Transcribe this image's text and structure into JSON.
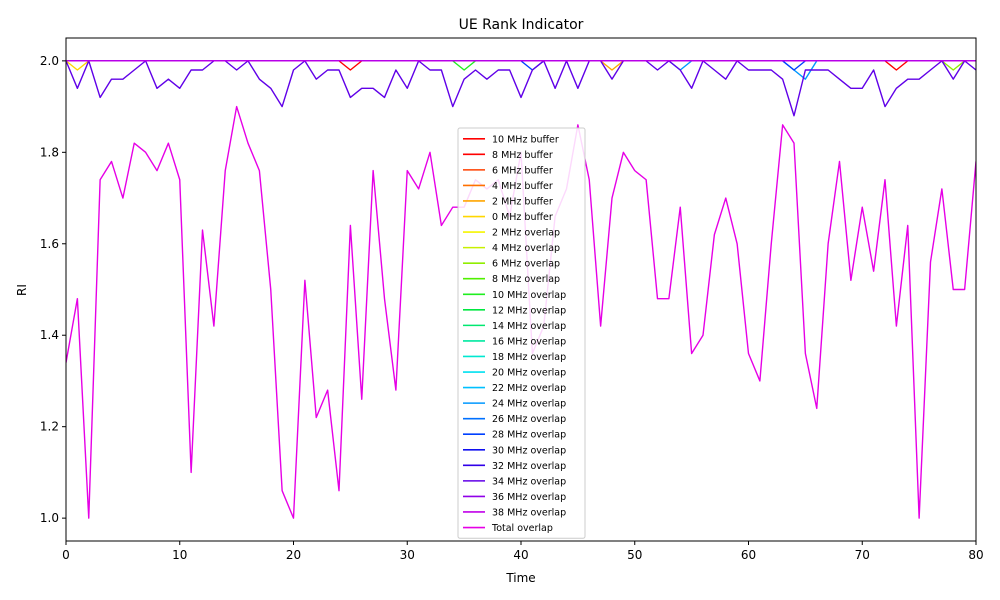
{
  "chart_data": {
    "type": "line",
    "title": "UE Rank Indicator",
    "xlabel": "Time",
    "ylabel": "RI",
    "xlim": [
      0,
      80
    ],
    "ylim": [
      0.95,
      2.05
    ],
    "xticks": [
      0,
      10,
      20,
      30,
      40,
      50,
      60,
      70,
      80
    ],
    "yticks": [
      1.0,
      1.2,
      1.4,
      1.6,
      1.8,
      2.0
    ],
    "grid": false,
    "legend_position": "center",
    "series": [
      {
        "name": "10 MHz buffer",
        "color": "#ff0000",
        "x": [
          0,
          80
        ],
        "y": [
          2.0,
          2.0
        ]
      },
      {
        "name": "8 MHz buffer",
        "color": "#ff0000",
        "x": [
          0,
          23,
          24,
          25,
          26,
          71,
          72,
          73,
          74,
          80
        ],
        "y": [
          2.0,
          2.0,
          2.0,
          1.98,
          2.0,
          2.0,
          2.0,
          1.98,
          2.0,
          2.0
        ]
      },
      {
        "name": "6 MHz buffer",
        "color": "#ff4000",
        "x": [
          0,
          80
        ],
        "y": [
          2.0,
          2.0
        ]
      },
      {
        "name": "4 MHz buffer",
        "color": "#ff7000",
        "x": [
          0,
          80
        ],
        "y": [
          2.0,
          2.0
        ]
      },
      {
        "name": "2 MHz buffer",
        "color": "#ffa500",
        "x": [
          0,
          47,
          48,
          49,
          80
        ],
        "y": [
          2.0,
          2.0,
          1.98,
          2.0,
          2.0
        ]
      },
      {
        "name": "0 MHz buffer",
        "color": "#ffd700",
        "x": [
          0,
          1,
          2,
          80
        ],
        "y": [
          2.0,
          1.98,
          2.0,
          2.0
        ]
      },
      {
        "name": "2 MHz overlap",
        "color": "#f5f500",
        "x": [
          0,
          80
        ],
        "y": [
          2.0,
          2.0
        ]
      },
      {
        "name": "4 MHz overlap",
        "color": "#c8f000",
        "x": [
          0,
          80
        ],
        "y": [
          2.0,
          2.0
        ]
      },
      {
        "name": "6 MHz overlap",
        "color": "#90ee00",
        "x": [
          0,
          77,
          78,
          79,
          80
        ],
        "y": [
          2.0,
          2.0,
          1.98,
          2.0,
          2.0
        ]
      },
      {
        "name": "8 MHz overlap",
        "color": "#50f000",
        "x": [
          0,
          80
        ],
        "y": [
          2.0,
          2.0
        ]
      },
      {
        "name": "10 MHz overlap",
        "color": "#20ee20",
        "x": [
          0,
          34,
          35,
          36,
          80
        ],
        "y": [
          2.0,
          2.0,
          1.98,
          2.0,
          2.0
        ]
      },
      {
        "name": "12 MHz overlap",
        "color": "#00e840",
        "x": [
          0,
          80
        ],
        "y": [
          2.0,
          2.0
        ]
      },
      {
        "name": "14 MHz overlap",
        "color": "#00e870",
        "x": [
          0,
          80
        ],
        "y": [
          2.0,
          2.0
        ]
      },
      {
        "name": "16 MHz overlap",
        "color": "#00e8a0",
        "x": [
          0,
          80
        ],
        "y": [
          2.0,
          2.0
        ]
      },
      {
        "name": "18 MHz overlap",
        "color": "#00e8d0",
        "x": [
          0,
          80
        ],
        "y": [
          2.0,
          2.0
        ]
      },
      {
        "name": "20 MHz overlap",
        "color": "#00e0f0",
        "x": [
          0,
          80
        ],
        "y": [
          2.0,
          2.0
        ]
      },
      {
        "name": "22 MHz overlap",
        "color": "#00c0ff",
        "x": [
          0,
          80
        ],
        "y": [
          2.0,
          2.0
        ]
      },
      {
        "name": "24 MHz overlap",
        "color": "#0098ff",
        "x": [
          0,
          53,
          54,
          55,
          63,
          64,
          65,
          66,
          80
        ],
        "y": [
          2.0,
          2.0,
          1.98,
          2.0,
          2.0,
          1.98,
          1.96,
          2.0,
          2.0
        ]
      },
      {
        "name": "26 MHz overlap",
        "color": "#0070ff",
        "x": [
          0,
          80
        ],
        "y": [
          2.0,
          2.0
        ]
      },
      {
        "name": "28 MHz overlap",
        "color": "#0040ff",
        "x": [
          0,
          39,
          40,
          41,
          42,
          63,
          64,
          65,
          80
        ],
        "y": [
          2.0,
          2.0,
          2.0,
          1.98,
          2.0,
          2.0,
          1.98,
          2.0,
          2.0
        ]
      },
      {
        "name": "30 MHz overlap",
        "color": "#1010f0",
        "x": [
          0,
          80
        ],
        "y": [
          2.0,
          2.0
        ]
      },
      {
        "name": "32 MHz overlap",
        "color": "#3000e8",
        "x": [
          0,
          80
        ],
        "y": [
          2.0,
          2.0
        ]
      },
      {
        "name": "34 MHz overlap",
        "color": "#6000e8",
        "x": [
          0,
          1,
          2,
          3,
          4,
          5,
          6,
          7,
          8,
          9,
          10,
          11,
          12,
          13,
          14,
          15,
          16,
          17,
          18,
          19,
          20,
          21,
          22,
          23,
          24,
          25,
          26,
          27,
          28,
          29,
          30,
          31,
          32,
          33,
          34,
          35,
          36,
          37,
          38,
          39,
          40,
          41,
          42,
          43,
          44,
          45,
          46,
          47,
          48,
          49,
          50,
          51,
          52,
          53,
          54,
          55,
          56,
          57,
          58,
          59,
          60,
          61,
          62,
          63,
          64,
          65,
          66,
          67,
          68,
          69,
          70,
          71,
          72,
          73,
          74,
          75,
          76,
          77,
          78,
          79,
          80
        ],
        "y": [
          2.0,
          1.94,
          2.0,
          1.92,
          1.96,
          1.96,
          1.98,
          2.0,
          1.94,
          1.96,
          1.94,
          1.98,
          1.98,
          2.0,
          2.0,
          1.98,
          2.0,
          1.96,
          1.94,
          1.9,
          1.98,
          2.0,
          1.96,
          1.98,
          1.98,
          1.92,
          1.94,
          1.94,
          1.92,
          1.98,
          1.94,
          2.0,
          1.98,
          1.98,
          1.9,
          1.96,
          1.98,
          1.96,
          1.98,
          1.98,
          1.92,
          1.98,
          2.0,
          1.94,
          2.0,
          1.94,
          2.0,
          2.0,
          1.96,
          2.0,
          2.0,
          2.0,
          1.98,
          2.0,
          1.98,
          1.94,
          2.0,
          1.98,
          1.96,
          2.0,
          1.98,
          1.98,
          1.98,
          1.96,
          1.88,
          1.98,
          1.98,
          1.98,
          1.96,
          1.94,
          1.94,
          1.98,
          1.9,
          1.94,
          1.96,
          1.96,
          1.98,
          2.0,
          1.96,
          2.0,
          1.98
        ]
      },
      {
        "name": "36 MHz overlap",
        "color": "#9000e8",
        "x": [
          0,
          80
        ],
        "y": [
          2.0,
          2.0
        ]
      },
      {
        "name": "38 MHz overlap",
        "color": "#c000e8",
        "x": [
          0,
          80
        ],
        "y": [
          2.0,
          2.0
        ]
      },
      {
        "name": "Total overlap",
        "color": "#e600e6",
        "x": [
          0,
          1,
          2,
          3,
          4,
          5,
          6,
          7,
          8,
          9,
          10,
          11,
          12,
          13,
          14,
          15,
          16,
          17,
          18,
          19,
          20,
          21,
          22,
          23,
          24,
          25,
          26,
          27,
          28,
          29,
          30,
          31,
          32,
          33,
          34,
          35,
          36,
          37,
          38,
          39,
          40,
          41,
          42,
          43,
          44,
          45,
          46,
          47,
          48,
          49,
          50,
          51,
          52,
          53,
          54,
          55,
          56,
          57,
          58,
          59,
          60,
          61,
          62,
          63,
          64,
          65,
          66,
          67,
          68,
          69,
          70,
          71,
          72,
          73,
          74,
          75,
          76,
          77,
          78,
          79,
          80
        ],
        "y": [
          1.34,
          1.48,
          1.0,
          1.74,
          1.78,
          1.7,
          1.82,
          1.8,
          1.76,
          1.82,
          1.74,
          1.1,
          1.63,
          1.42,
          1.76,
          1.9,
          1.82,
          1.76,
          1.5,
          1.06,
          1.0,
          1.52,
          1.22,
          1.28,
          1.06,
          1.64,
          1.26,
          1.76,
          1.48,
          1.28,
          1.76,
          1.72,
          1.8,
          1.64,
          1.68,
          1.68,
          1.74,
          1.72,
          1.74,
          1.66,
          1.8,
          1.36,
          1.42,
          1.66,
          1.72,
          1.86,
          1.74,
          1.42,
          1.7,
          1.8,
          1.76,
          1.74,
          1.48,
          1.48,
          1.68,
          1.36,
          1.4,
          1.62,
          1.7,
          1.6,
          1.36,
          1.3,
          1.6,
          1.86,
          1.82,
          1.36,
          1.24,
          1.6,
          1.78,
          1.52,
          1.68,
          1.54,
          1.74,
          1.42,
          1.64,
          1.0,
          1.56,
          1.72,
          1.5,
          1.5,
          1.78
        ]
      }
    ]
  }
}
